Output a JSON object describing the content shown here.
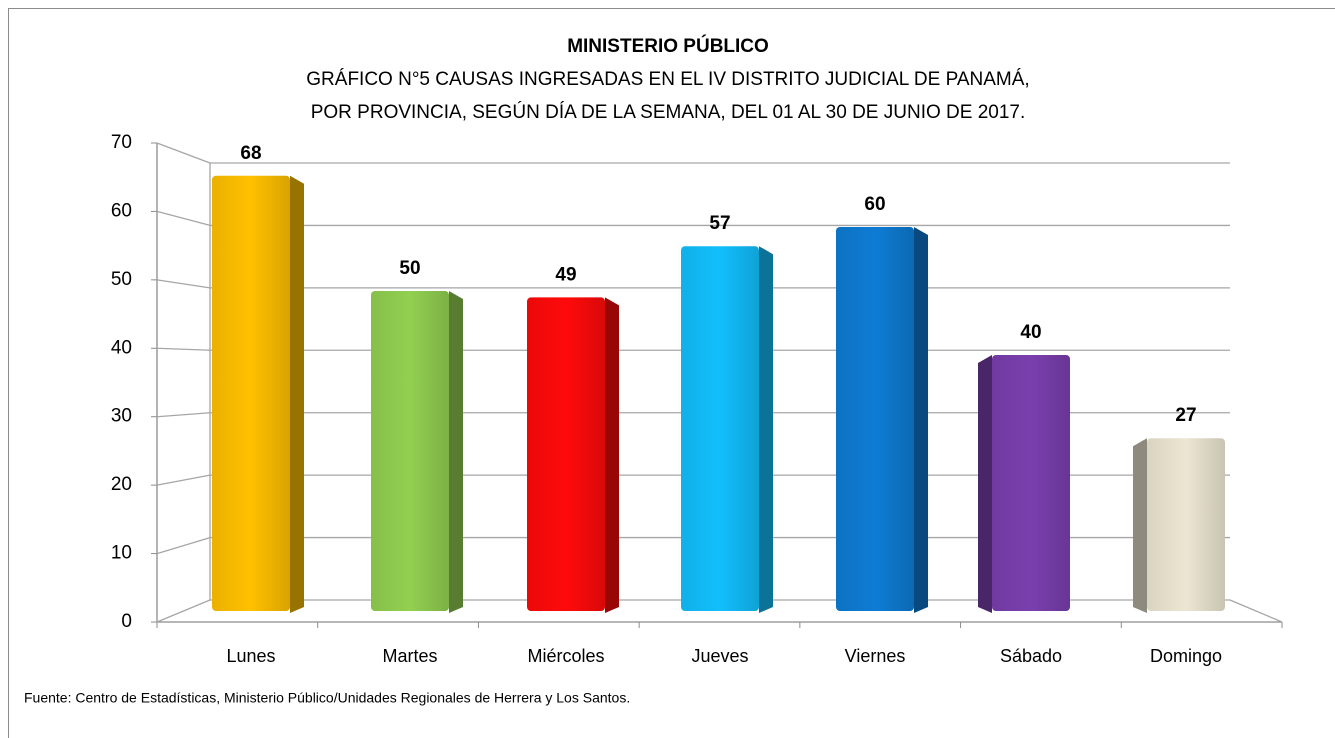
{
  "chart_data": {
    "type": "bar3d",
    "title": "MINISTERIO PÚBLICO",
    "subtitle": [
      "GRÁFICO N°5 CAUSAS INGRESADAS EN EL IV DISTRITO JUDICIAL DE PANAMÁ,",
      "POR PROVINCIA, SEGÚN DÍA DE LA SEMANA, DEL 01 AL 30 DE JUNIO DE 2017."
    ],
    "categories": [
      "Lunes",
      "Martes",
      "Miércoles",
      "Jueves",
      "Viernes",
      "Sábado",
      "Domingo"
    ],
    "values": [
      68,
      50,
      49,
      57,
      60,
      40,
      27
    ],
    "colors": [
      "#ffc000",
      "#92d050",
      "#ff0a0a",
      "#12bffc",
      "#0e7cd4",
      "#7a3fae",
      "#ece6d2"
    ],
    "ylim": [
      0,
      70
    ],
    "yticks": [
      0,
      10,
      20,
      30,
      40,
      50,
      60,
      70
    ],
    "grid": true,
    "source": "Fuente: Centro de Estadísticas, Ministerio Público/Unidades Regionales de Herrera y Los Santos."
  }
}
